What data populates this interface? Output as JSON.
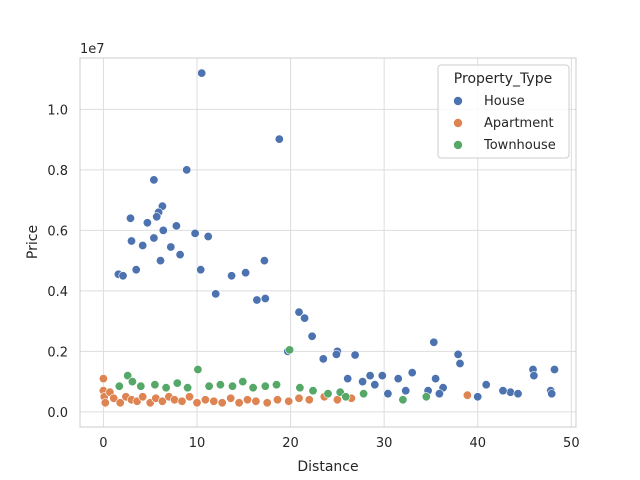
{
  "chart_data": {
    "type": "scatter",
    "title": "",
    "xlabel": "Distance",
    "ylabel": "Price",
    "offset_label": "1e7",
    "xlim": [
      -2.5,
      50.5
    ],
    "ylim": [
      -0.05,
      1.17
    ],
    "xticks": [
      0,
      10,
      20,
      30,
      40,
      50
    ],
    "yticks": [
      0.0,
      0.2,
      0.4,
      0.6,
      0.8,
      1.0
    ],
    "ytick_labels": [
      "0.0",
      "0.2",
      "0.4",
      "0.6",
      "0.8",
      "1.0"
    ],
    "grid": true,
    "legend": {
      "title": "Property_Type",
      "placement": "top-right"
    },
    "series": [
      {
        "name": "House",
        "color": "#4c72b0",
        "points": [
          [
            10.5,
            1.12
          ],
          [
            18.8,
            0.902
          ],
          [
            8.9,
            0.8
          ],
          [
            5.4,
            0.767
          ],
          [
            6.3,
            0.68
          ],
          [
            5.9,
            0.66
          ],
          [
            5.7,
            0.645
          ],
          [
            2.9,
            0.64
          ],
          [
            7.8,
            0.615
          ],
          [
            4.7,
            0.625
          ],
          [
            11.2,
            0.58
          ],
          [
            3.0,
            0.565
          ],
          [
            6.4,
            0.6
          ],
          [
            9.8,
            0.59
          ],
          [
            5.4,
            0.575
          ],
          [
            4.2,
            0.55
          ],
          [
            7.2,
            0.545
          ],
          [
            8.2,
            0.52
          ],
          [
            6.1,
            0.5
          ],
          [
            17.2,
            0.5
          ],
          [
            3.5,
            0.47
          ],
          [
            10.4,
            0.47
          ],
          [
            15.2,
            0.46
          ],
          [
            13.7,
            0.45
          ],
          [
            12.0,
            0.39
          ],
          [
            16.4,
            0.37
          ],
          [
            17.3,
            0.375
          ],
          [
            1.6,
            0.455
          ],
          [
            2.1,
            0.45
          ],
          [
            20.9,
            0.33
          ],
          [
            21.5,
            0.31
          ],
          [
            22.3,
            0.25
          ],
          [
            35.3,
            0.23
          ],
          [
            37.9,
            0.19
          ],
          [
            26.9,
            0.188
          ],
          [
            25.0,
            0.2
          ],
          [
            19.7,
            0.2
          ],
          [
            23.5,
            0.175
          ],
          [
            24.9,
            0.19
          ],
          [
            28.5,
            0.12
          ],
          [
            33.0,
            0.13
          ],
          [
            29.8,
            0.12
          ],
          [
            31.5,
            0.11
          ],
          [
            35.5,
            0.11
          ],
          [
            40.9,
            0.09
          ],
          [
            43.5,
            0.065
          ],
          [
            44.3,
            0.06
          ],
          [
            45.9,
            0.14
          ],
          [
            46.0,
            0.12
          ],
          [
            47.8,
            0.07
          ],
          [
            48.2,
            0.14
          ],
          [
            47.9,
            0.06
          ],
          [
            36.3,
            0.08
          ],
          [
            38.1,
            0.16
          ],
          [
            34.7,
            0.07
          ],
          [
            32.3,
            0.07
          ],
          [
            27.7,
            0.1
          ],
          [
            26.1,
            0.11
          ],
          [
            30.4,
            0.06
          ],
          [
            42.7,
            0.07
          ],
          [
            40.0,
            0.05
          ],
          [
            35.9,
            0.06
          ],
          [
            29.0,
            0.09
          ]
        ]
      },
      {
        "name": "Apartment",
        "color": "#dd8452",
        "points": [
          [
            0.0,
            0.11
          ],
          [
            0.0,
            0.07
          ],
          [
            0.1,
            0.05
          ],
          [
            0.2,
            0.03
          ],
          [
            0.7,
            0.065
          ],
          [
            1.1,
            0.045
          ],
          [
            1.8,
            0.03
          ],
          [
            2.4,
            0.05
          ],
          [
            3.0,
            0.04
          ],
          [
            3.6,
            0.035
          ],
          [
            4.2,
            0.05
          ],
          [
            5.0,
            0.03
          ],
          [
            5.6,
            0.045
          ],
          [
            6.3,
            0.035
          ],
          [
            7.0,
            0.05
          ],
          [
            7.6,
            0.04
          ],
          [
            8.4,
            0.035
          ],
          [
            9.2,
            0.05
          ],
          [
            10.0,
            0.03
          ],
          [
            10.9,
            0.04
          ],
          [
            11.8,
            0.035
          ],
          [
            12.7,
            0.03
          ],
          [
            13.6,
            0.045
          ],
          [
            14.5,
            0.03
          ],
          [
            15.4,
            0.04
          ],
          [
            16.3,
            0.035
          ],
          [
            17.5,
            0.03
          ],
          [
            18.6,
            0.04
          ],
          [
            19.8,
            0.035
          ],
          [
            20.9,
            0.045
          ],
          [
            22.0,
            0.04
          ],
          [
            23.6,
            0.05
          ],
          [
            25.0,
            0.04
          ],
          [
            26.5,
            0.045
          ],
          [
            38.9,
            0.055
          ]
        ]
      },
      {
        "name": "Townhouse",
        "color": "#55a868",
        "points": [
          [
            1.7,
            0.085
          ],
          [
            2.6,
            0.12
          ],
          [
            3.1,
            0.1
          ],
          [
            4.0,
            0.085
          ],
          [
            5.5,
            0.09
          ],
          [
            6.7,
            0.08
          ],
          [
            7.9,
            0.095
          ],
          [
            9.0,
            0.08
          ],
          [
            10.1,
            0.14
          ],
          [
            11.3,
            0.085
          ],
          [
            12.5,
            0.09
          ],
          [
            13.8,
            0.085
          ],
          [
            14.9,
            0.1
          ],
          [
            16.0,
            0.08
          ],
          [
            17.3,
            0.085
          ],
          [
            18.5,
            0.09
          ],
          [
            19.9,
            0.205
          ],
          [
            21.0,
            0.08
          ],
          [
            22.4,
            0.07
          ],
          [
            24.0,
            0.06
          ],
          [
            25.3,
            0.065
          ],
          [
            25.9,
            0.05
          ],
          [
            27.8,
            0.06
          ],
          [
            32.0,
            0.04
          ],
          [
            34.5,
            0.05
          ]
        ]
      }
    ]
  }
}
